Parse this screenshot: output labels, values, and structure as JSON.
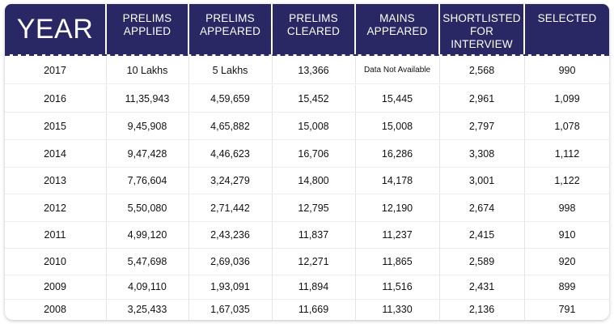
{
  "chart_data": {
    "type": "table",
    "columns": [
      {
        "line1": "YEAR",
        "line2": ""
      },
      {
        "line1": "PRELIMS",
        "line2": "APPLIED"
      },
      {
        "line1": "PRELIMS",
        "line2": "APPEARED"
      },
      {
        "line1": "PRELIMS",
        "line2": "CLEARED"
      },
      {
        "line1": "MAINS",
        "line2": "APPEARED"
      },
      {
        "line1": "SHORTLISTED",
        "line2": "FOR INTERVIEW"
      },
      {
        "line1": "SELECTED",
        "line2": ""
      }
    ],
    "rows": [
      {
        "year": "2017",
        "prelims_applied": "10 Lakhs",
        "prelims_appeared": "5 Lakhs",
        "prelims_cleared": "13,366",
        "mains_appeared": "Data Not Available",
        "shortlisted": "2,568",
        "selected": "990"
      },
      {
        "year": "2016",
        "prelims_applied": "11,35,943",
        "prelims_appeared": "4,59,659",
        "prelims_cleared": "15,452",
        "mains_appeared": "15,445",
        "shortlisted": "2,961",
        "selected": "1,099"
      },
      {
        "year": "2015",
        "prelims_applied": "9,45,908",
        "prelims_appeared": "4,65,882",
        "prelims_cleared": "15,008",
        "mains_appeared": "15,008",
        "shortlisted": "2,797",
        "selected": "1,078"
      },
      {
        "year": "2014",
        "prelims_applied": "9,47,428",
        "prelims_appeared": "4,46,623",
        "prelims_cleared": "16,706",
        "mains_appeared": "16,286",
        "shortlisted": "3,308",
        "selected": "1,112"
      },
      {
        "year": "2013",
        "prelims_applied": "7,76,604",
        "prelims_appeared": "3,24,279",
        "prelims_cleared": "14,800",
        "mains_appeared": "14,178",
        "shortlisted": "3,001",
        "selected": "1,122"
      },
      {
        "year": "2012",
        "prelims_applied": "5,50,080",
        "prelims_appeared": "2,71,442",
        "prelims_cleared": "12,795",
        "mains_appeared": "12,190",
        "shortlisted": "2,674",
        "selected": "998"
      },
      {
        "year": "2011",
        "prelims_applied": "4,99,120",
        "prelims_appeared": "2,43,236",
        "prelims_cleared": "11,837",
        "mains_appeared": "11,237",
        "shortlisted": "2,415",
        "selected": "910"
      },
      {
        "year": "2010",
        "prelims_applied": "5,47,698",
        "prelims_appeared": "2,69,036",
        "prelims_cleared": "12,271",
        "mains_appeared": "11,865",
        "shortlisted": "2,589",
        "selected": "920"
      },
      {
        "year": "2009",
        "prelims_applied": "4,09,110",
        "prelims_appeared": "1,93,091",
        "prelims_cleared": "11,894",
        "mains_appeared": "11,516",
        "shortlisted": "2,431",
        "selected": "899"
      },
      {
        "year": "2008",
        "prelims_applied": "3,25,433",
        "prelims_appeared": "1,67,035",
        "prelims_cleared": "11,669",
        "mains_appeared": "11,330",
        "shortlisted": "2,136",
        "selected": "791"
      }
    ],
    "header_color": "#2a2864"
  }
}
